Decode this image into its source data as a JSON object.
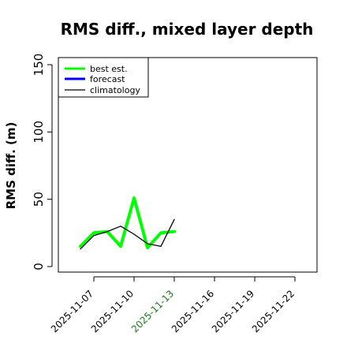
{
  "chart_data": {
    "type": "line",
    "title": "RMS diff., mixed layer depth",
    "xlabel": "",
    "ylabel": "RMS diff. (m)",
    "ylim": [
      0,
      155
    ],
    "yticks": [
      0,
      50,
      100,
      150
    ],
    "xticks": [
      "2025-11-07",
      "2025-11-10",
      "2025-11-13",
      "2025-11-16",
      "2025-11-19",
      "2025-11-22"
    ],
    "highlight_tick": "2025-11-13",
    "highlight_color": "#1a7a1a",
    "legend": {
      "position": "top-left",
      "entries": [
        "best est.",
        "forecast",
        "climatology"
      ]
    },
    "series": [
      {
        "name": "best est.",
        "color": "#00ff00",
        "x": [
          "2025-11-06",
          "2025-11-07",
          "2025-11-08",
          "2025-11-09",
          "2025-11-10",
          "2025-11-11",
          "2025-11-12",
          "2025-11-13"
        ],
        "values": [
          15,
          25,
          26,
          15,
          51,
          14,
          25,
          26
        ]
      },
      {
        "name": "forecast",
        "color": "#0000ff",
        "x": [],
        "values": []
      },
      {
        "name": "climatology",
        "color": "#000000",
        "x": [
          "2025-11-06",
          "2025-11-07",
          "2025-11-08",
          "2025-11-09",
          "2025-11-10",
          "2025-11-11",
          "2025-11-12",
          "2025-11-13"
        ],
        "values": [
          13,
          23,
          26,
          30,
          24,
          17,
          15,
          35
        ]
      }
    ]
  }
}
